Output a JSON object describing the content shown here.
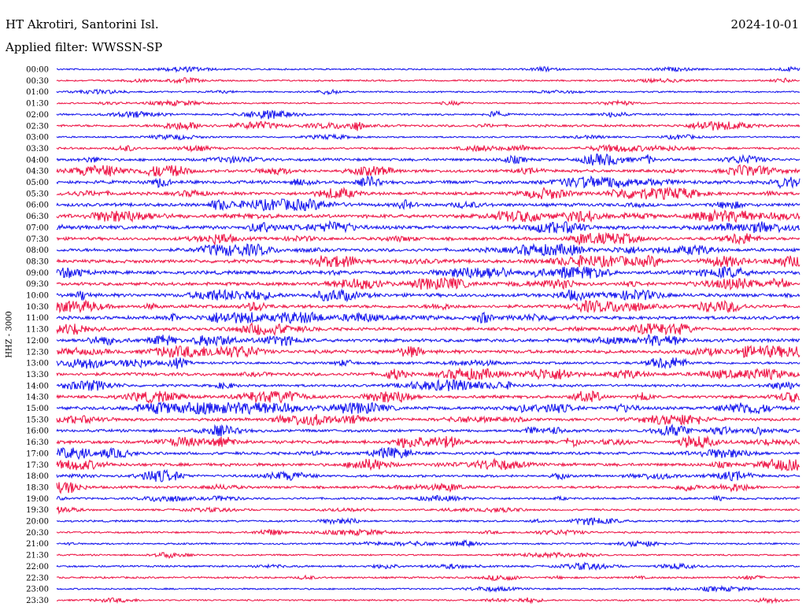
{
  "header": {
    "station": "HT Akrotiri, Santorini Isl.",
    "date": "2024-10-01",
    "filter_label": "Applied filter:",
    "filter_value": "WWSSN-SP"
  },
  "channel_label": "HHZ - 3000",
  "chart_data": {
    "type": "helicorder",
    "title": "HT Akrotiri, Santorini Isl.",
    "date": "2024-10-01",
    "filter": "WWSSN-SP",
    "channel": "HHZ - 3000",
    "row_interval_minutes": 30,
    "colors": [
      "#1a1aee",
      "#ee1a4a"
    ],
    "rows": [
      {
        "label": "00:00",
        "level": 0.6
      },
      {
        "label": "00:30",
        "level": 0.6
      },
      {
        "label": "01:00",
        "level": 0.6
      },
      {
        "label": "01:30",
        "level": 0.5
      },
      {
        "label": "02:00",
        "level": 0.8
      },
      {
        "label": "02:30",
        "level": 1.2
      },
      {
        "label": "03:00",
        "level": 0.6
      },
      {
        "label": "03:30",
        "level": 1.0
      },
      {
        "label": "04:00",
        "level": 1.5
      },
      {
        "label": "04:30",
        "level": 1.7
      },
      {
        "label": "05:00",
        "level": 2.0
      },
      {
        "label": "05:30",
        "level": 1.8
      },
      {
        "label": "06:00",
        "level": 2.0
      },
      {
        "label": "06:30",
        "level": 2.2
      },
      {
        "label": "07:00",
        "level": 2.4
      },
      {
        "label": "07:30",
        "level": 1.8
      },
      {
        "label": "08:00",
        "level": 2.0
      },
      {
        "label": "08:30",
        "level": 2.0
      },
      {
        "label": "09:00",
        "level": 2.2
      },
      {
        "label": "09:30",
        "level": 2.0
      },
      {
        "label": "10:00",
        "level": 2.2
      },
      {
        "label": "10:30",
        "level": 2.0
      },
      {
        "label": "11:00",
        "level": 2.0
      },
      {
        "label": "11:30",
        "level": 1.8
      },
      {
        "label": "12:00",
        "level": 2.0
      },
      {
        "label": "12:30",
        "level": 2.2
      },
      {
        "label": "13:00",
        "level": 1.4
      },
      {
        "label": "13:30",
        "level": 2.0
      },
      {
        "label": "14:00",
        "level": 1.4
      },
      {
        "label": "14:30",
        "level": 1.8
      },
      {
        "label": "15:00",
        "level": 2.0
      },
      {
        "label": "15:30",
        "level": 1.6
      },
      {
        "label": "16:00",
        "level": 1.6
      },
      {
        "label": "16:30",
        "level": 2.0
      },
      {
        "label": "17:00",
        "level": 1.6
      },
      {
        "label": "17:30",
        "level": 1.8
      },
      {
        "label": "18:00",
        "level": 1.3
      },
      {
        "label": "18:30",
        "level": 1.3
      },
      {
        "label": "19:00",
        "level": 1.0
      },
      {
        "label": "19:30",
        "level": 0.8
      },
      {
        "label": "20:00",
        "level": 0.9
      },
      {
        "label": "20:30",
        "level": 0.7
      },
      {
        "label": "21:00",
        "level": 0.7
      },
      {
        "label": "21:30",
        "level": 0.6
      },
      {
        "label": "22:00",
        "level": 0.9
      },
      {
        "label": "22:30",
        "level": 0.8
      },
      {
        "label": "23:00",
        "level": 0.6
      },
      {
        "label": "23:30",
        "level": 0.6
      }
    ]
  }
}
